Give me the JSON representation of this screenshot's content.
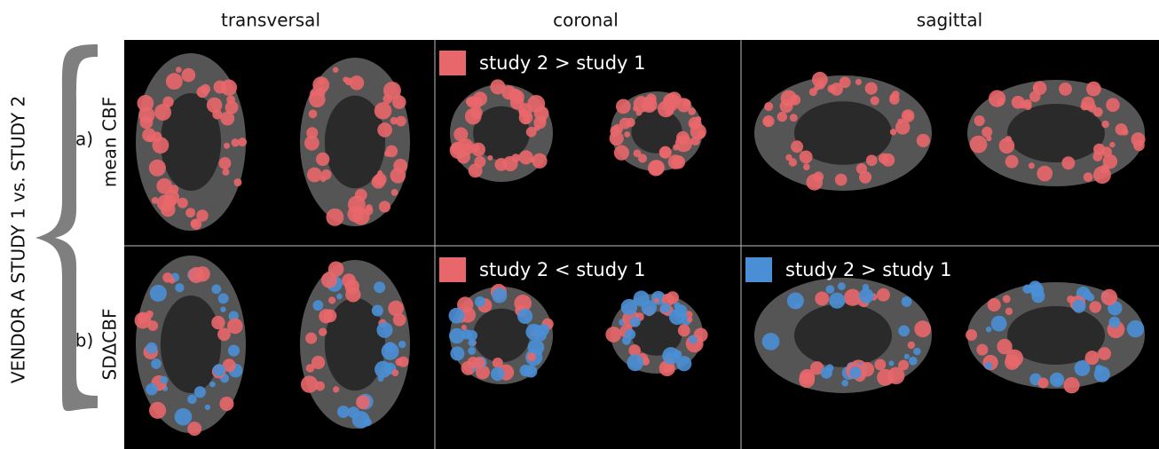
{
  "side_label": "VENDOR A STUDY 1 vs. STUDY 2",
  "columns": [
    "transversal",
    "coronal",
    "sagittal"
  ],
  "rows": [
    {
      "label": "a)",
      "measure": "mean CBF",
      "legends": [
        {
          "text": "study 2 > study 1"
        }
      ]
    },
    {
      "label": "b)",
      "measure": "SDΔCBF",
      "legends": [
        {
          "text": "study 2 < study 1"
        },
        {
          "text": "study 2 > study 1"
        }
      ]
    }
  ]
}
